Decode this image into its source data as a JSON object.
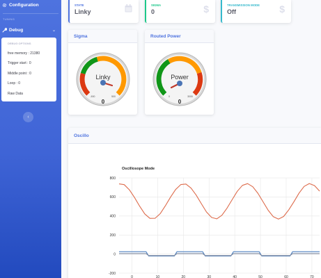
{
  "sidebar": {
    "configuration_label": "Configuration",
    "heading": "TUNING",
    "debug_label": "Debug",
    "debug_menu": {
      "title": "DEBUG OPTIONS",
      "items": [
        "free memory : 21380",
        "Trigger start : 0",
        "Middle point : 0",
        "Loop : 0",
        "Raw Data"
      ]
    },
    "toggle_symbol": "‹"
  },
  "stats": [
    {
      "label": "STATE",
      "value": "Linky",
      "color": "#4e73df",
      "icon": "calendar-icon"
    },
    {
      "label": "SIGMA",
      "value": "0",
      "color": "#1cc88a",
      "icon": "dollar-icon"
    },
    {
      "label": "TRANSMISSION MODE",
      "value": "Off",
      "color": "#36b9cc",
      "icon": "dollar-icon"
    }
  ],
  "gauges": [
    {
      "header": "Sigma",
      "label": "Linky",
      "value": "0",
      "min_label": "-500",
      "max_label": "500",
      "fraction": 0.0
    },
    {
      "header": "Routed Power",
      "label": "Power",
      "value": "0",
      "min_label": "0",
      "max_label": "3000",
      "fraction": 0.0
    }
  ],
  "oscillo": {
    "header": "Oscillo",
    "chart_data": {
      "type": "line",
      "title": "Oscillosope Mode",
      "xlim": [
        -5,
        73
      ],
      "ylim": [
        -200,
        800
      ],
      "xticks": [
        0,
        10,
        20,
        30,
        40,
        50,
        60,
        70
      ],
      "yticks": [
        -200,
        0,
        200,
        400,
        600,
        800
      ],
      "grid": true,
      "series": [
        {
          "color": "#dd6b4b",
          "x": [
            -5,
            -3,
            -1,
            1,
            3,
            5,
            7,
            9,
            11,
            13,
            15,
            17,
            19,
            21,
            23,
            25,
            27,
            29,
            31,
            33,
            35,
            37,
            39,
            41,
            43,
            45,
            47,
            49,
            51,
            53,
            55,
            57,
            59,
            61,
            63,
            65,
            67,
            69,
            71,
            73
          ],
          "y": [
            737,
            729,
            675,
            594,
            504,
            422,
            375,
            376,
            425,
            507,
            597,
            678,
            730,
            736,
            693,
            619,
            529,
            442,
            385,
            370,
            408,
            483,
            573,
            660,
            722,
            740,
            707,
            639,
            549,
            460,
            393,
            368,
            395,
            465,
            550,
            641,
            711,
            741,
            720,
            661
          ]
        },
        {
          "color": "#4a7fbf",
          "x": [
            -5,
            5.5,
            6.5,
            16.5,
            17.5,
            27.5,
            28.5,
            38.5,
            39.5,
            49.5,
            50.5,
            61.5,
            62.5,
            73
          ],
          "y": [
            25,
            25,
            -20,
            -20,
            25,
            25,
            -20,
            -20,
            25,
            25,
            -20,
            -20,
            25,
            25
          ]
        },
        {
          "color": "#7f8aa0",
          "x": [
            -5,
            5.5,
            6.5,
            16.5,
            17.5,
            27.5,
            28.5,
            38.5,
            39.5,
            49.5,
            50.5,
            61.5,
            62.5,
            73
          ],
          "y": [
            5,
            5,
            -15,
            -15,
            5,
            5,
            -15,
            -15,
            5,
            5,
            -15,
            -15,
            5,
            5
          ]
        }
      ]
    }
  }
}
